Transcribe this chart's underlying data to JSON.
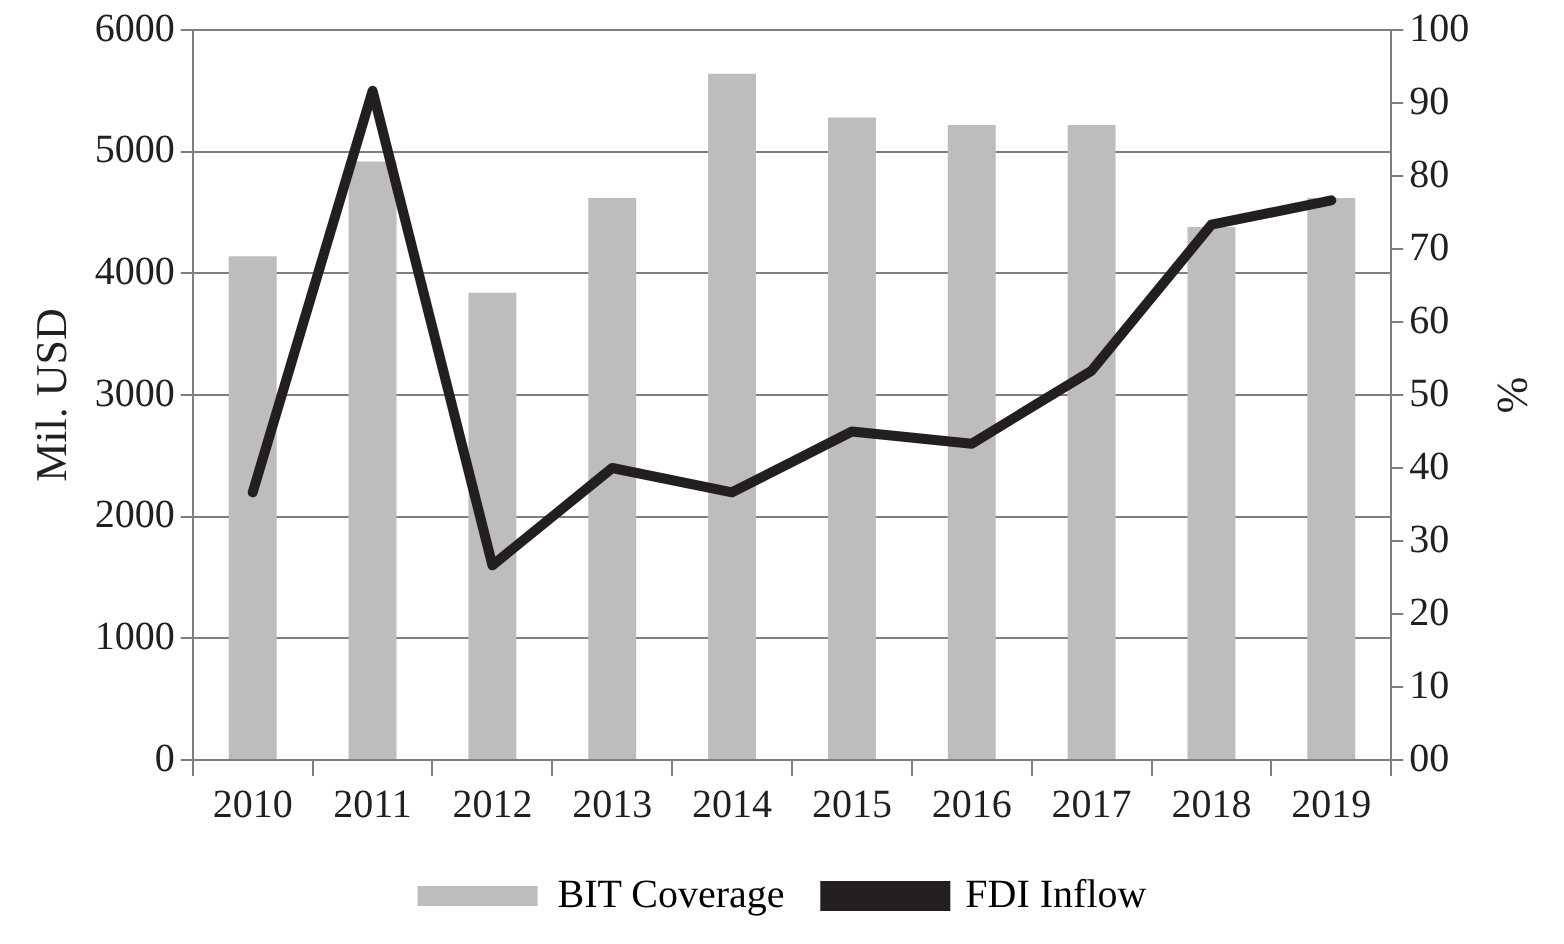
{
  "chart_data": {
    "type": "bar",
    "categories": [
      "2010",
      "2011",
      "2012",
      "2013",
      "2014",
      "2015",
      "2016",
      "2017",
      "2018",
      "2019"
    ],
    "ylabel": "Mil. USD",
    "y2label": "%",
    "series": [
      {
        "name": "BIT Coverage",
        "axis": "y2",
        "color": "#bdbdbd",
        "values": [
          69,
          82,
          64,
          77,
          94,
          88,
          87,
          87,
          73,
          77
        ]
      },
      {
        "name": "FDI Inflow",
        "type": "line",
        "axis": "y",
        "color": "#231f20",
        "values": [
          2200,
          5500,
          1600,
          2400,
          2200,
          2700,
          2600,
          3200,
          4400,
          4600
        ]
      }
    ],
    "ylim": [
      0,
      6000
    ],
    "yticks": [
      0,
      1000,
      2000,
      3000,
      4000,
      5000,
      6000
    ],
    "y2lim": [
      0,
      100
    ],
    "y2ticks": [
      {
        "value": 0,
        "label": "00"
      },
      10,
      20,
      30,
      40,
      50,
      60,
      70,
      80,
      90,
      100
    ],
    "grid": "y",
    "legend": "bottom",
    "marker": "none"
  }
}
